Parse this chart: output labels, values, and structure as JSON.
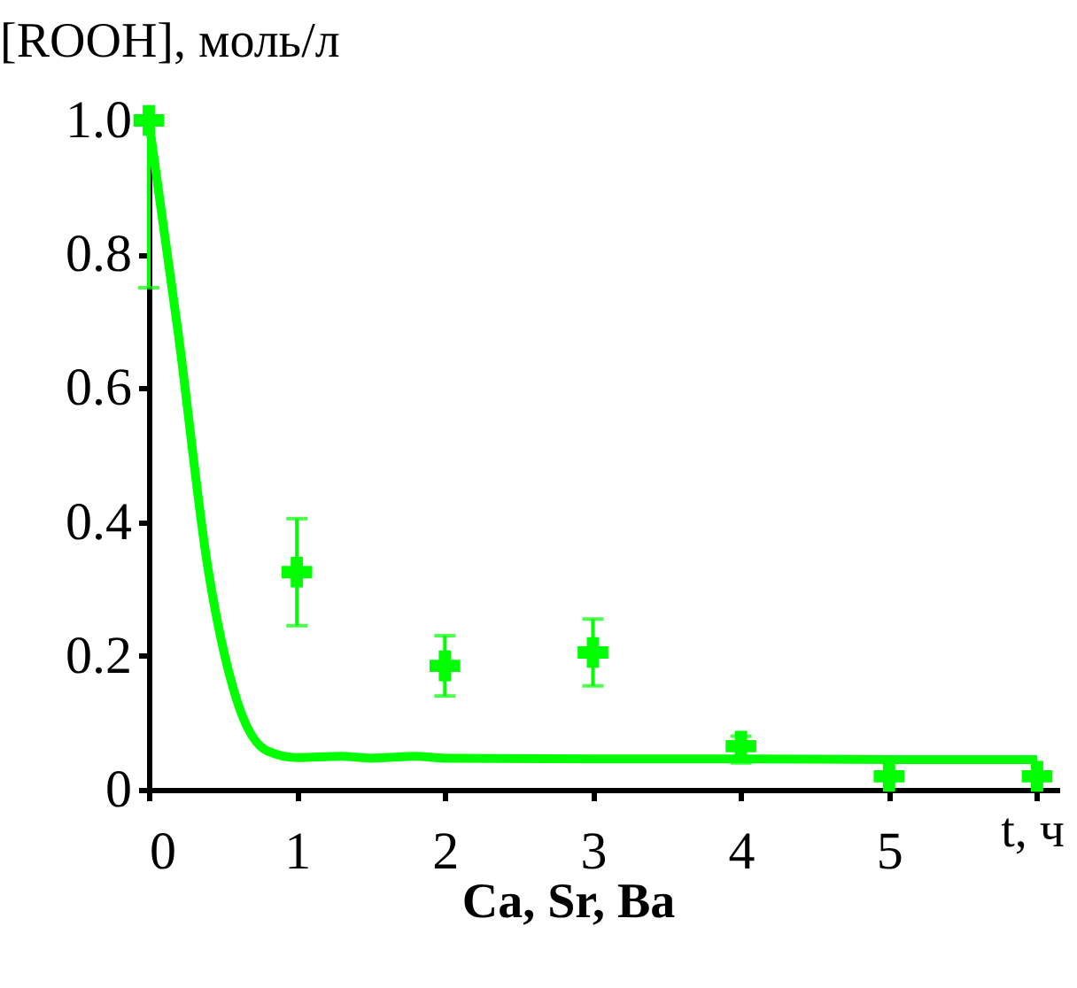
{
  "chart_data": {
    "type": "scatter",
    "ylabel": "[ROOH], моль/л",
    "xlabel": "t, ч",
    "annotations": [
      "Ca, Sr, Ba"
    ],
    "xlim": [
      0,
      6.15
    ],
    "xticks": [
      0,
      1,
      2,
      3,
      4,
      5,
      {
        "value": 6,
        "label": null
      }
    ],
    "ylim": [
      0,
      1.0
    ],
    "yticks": [
      0,
      0.2,
      0.4,
      0.6,
      0.8,
      {
        "value": 1.0,
        "label": "1.0"
      }
    ],
    "grid": false,
    "marker": "cross",
    "series": [
      {
        "color": "#00ff00",
        "x": [
          0,
          1,
          2,
          3,
          4,
          5,
          6
        ],
        "values": [
          1.0,
          0.325,
          0.185,
          0.205,
          0.065,
          0.02,
          0.02
        ],
        "errors": [
          [
            0.75,
            1.0
          ],
          [
            0.245,
            0.405
          ],
          [
            0.14,
            0.23
          ],
          [
            0.155,
            0.255
          ],
          [
            0.04,
            0.08
          ],
          null,
          null
        ]
      },
      {
        "type": "line",
        "color": "#00ff00",
        "line_style": "solid",
        "marker": "none",
        "x": [
          0,
          0.2,
          0.4,
          0.6,
          0.8,
          1.0,
          1.3,
          1.5,
          1.8,
          2,
          3,
          4,
          5,
          6
        ],
        "values": [
          1.0,
          0.68,
          0.33,
          0.13,
          0.058,
          0.048,
          0.05,
          0.047,
          0.05,
          0.047,
          0.046,
          0.046,
          0.045,
          0.045
        ]
      }
    ]
  }
}
